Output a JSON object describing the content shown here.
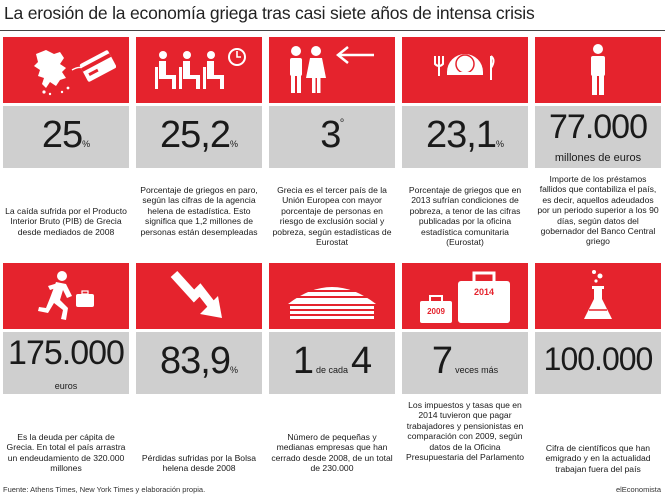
{
  "title": "La erosión de la economía griega tras casi siete años de intensa crisis",
  "colors": {
    "accent": "#e5232d",
    "panel": "#cfcfcf"
  },
  "cards": [
    {
      "icon": "greece-map-bank-card-icon",
      "value": "25",
      "unit": "%",
      "desc": "La caída sufrida por el Producto Interior Bruto (PIB) de Grecia desde mediados de 2008"
    },
    {
      "icon": "waiting-chairs-clock-icon",
      "value": "25,2",
      "unit": "%",
      "desc": "Porcentaje de griegos en paro, según las cifras de la agencia helena de estadística. Esto significa que 1,2 millones de personas están desempleadas"
    },
    {
      "icon": "man-woman-arrow-icon",
      "value": "3",
      "unit": "º",
      "desc": "Grecia es el tercer país de la Unión Europea con mayor porcentaje de personas en riesgo de exclusión social y pobreza, según estadísticas de Eurostat"
    },
    {
      "icon": "empty-plate-icon",
      "value": "23,1",
      "unit": "%",
      "desc": "Porcentaje de griegos que en 2013 sufrían condiciones de pobreza, a tenor de las cifras publicadas por la oficina estadística comunitaria (Eurostat)"
    },
    {
      "icon": "person-standing-icon",
      "value": "77.000",
      "unit": "millones de euros",
      "desc": "Importe de los préstamos fallidos que contabiliza el país, es decir, aquellos adeudados por un periodo superior a los 90 días, según datos del gobernador del Banco Central griego"
    },
    {
      "icon": "running-man-briefcase-icon",
      "value": "175.000",
      "unit": "euros",
      "desc": "Es la deuda per cápita de Grecia. En total el país arrastra un endeudamiento de 320.000 millones"
    },
    {
      "icon": "down-arrow-icon",
      "value": "83,9",
      "unit": "%",
      "desc": "Pérdidas sufridas por la Bolsa helena desde 2008"
    },
    {
      "icon": "buildings-icon",
      "value_pre": "1",
      "value_mid": "de cada",
      "value": "4",
      "desc": "Número de pequeñas y medianas empresas que han cerrado desde 2008, de un total de 230.000"
    },
    {
      "icon": "briefcases-2009-2014-icon",
      "value": "7",
      "unit": "veces más",
      "year_a": "2009",
      "year_b": "2014",
      "desc": "Los impuestos y tasas que en 2014 tuvieron que pagar trabajadores y pensionistas en comparación con 2009, según datos de la Oficina Presupuestaria del Parlamento"
    },
    {
      "icon": "flask-icon",
      "value": "100.000",
      "desc": "Cifra de científicos que han emigrado y en la actualidad trabajan fuera del país"
    }
  ],
  "footer": {
    "source": "Fuente: Athens Times, New York Times y elaboración propia.",
    "brand": "elEconomista"
  }
}
